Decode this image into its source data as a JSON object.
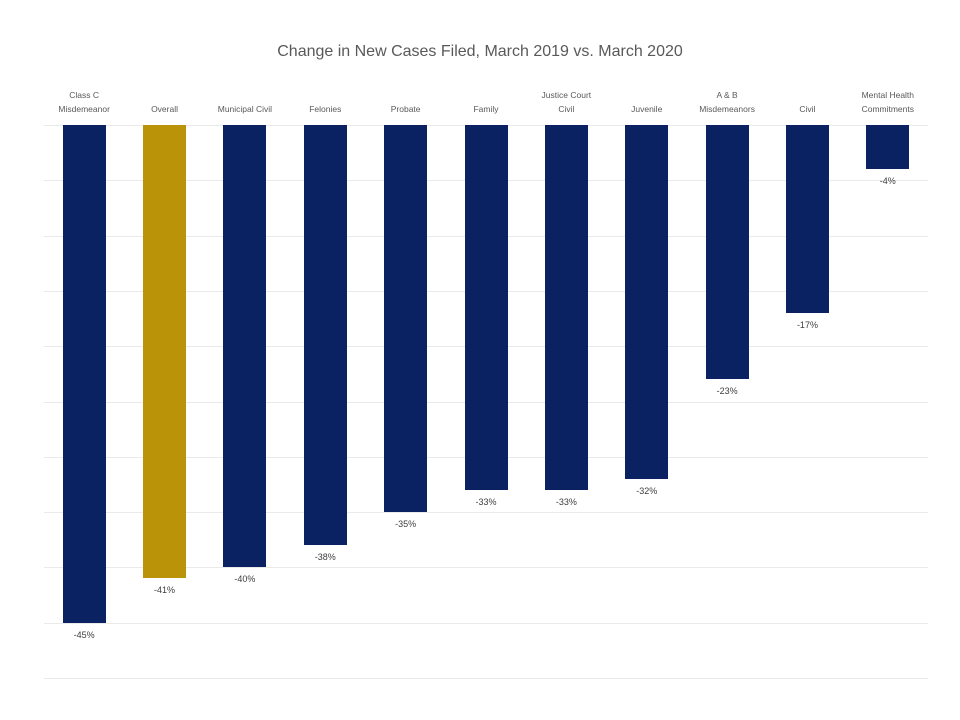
{
  "chart_data": {
    "type": "bar",
    "title": "Change in New Cases Filed, March 2019 vs. March 2020",
    "orientation": "vertical",
    "categories": [
      "Class C\nMisdemeanor",
      "Overall",
      "Municipal Civil",
      "Felonies",
      "Probate",
      "Family",
      "Justice Court\nCivil",
      "Juvenile",
      "A & B\nMisdemeanors",
      "Civil",
      "Mental Health\nCommitments"
    ],
    "values": [
      -45,
      -41,
      -40,
      -38,
      -35,
      -33,
      -33,
      -32,
      -23,
      -17,
      -4
    ],
    "value_labels": [
      "-45%",
      "-41%",
      "-40%",
      "-38%",
      "-35%",
      "-33%",
      "-33%",
      "-32%",
      "-23%",
      "-17%",
      "-4%"
    ],
    "ylim": [
      -50,
      0
    ],
    "gridline_step": 5,
    "grid": true,
    "legend": "none",
    "bar_color": "#0b2262",
    "highlight_color": "#bb9309",
    "highlight_index": 1,
    "highlighted_category": "Overall",
    "title_color": "#595959",
    "category_label_color": "#595959",
    "value_label_color": "#3d3d3d",
    "gridline_color": "#eaeaea"
  }
}
